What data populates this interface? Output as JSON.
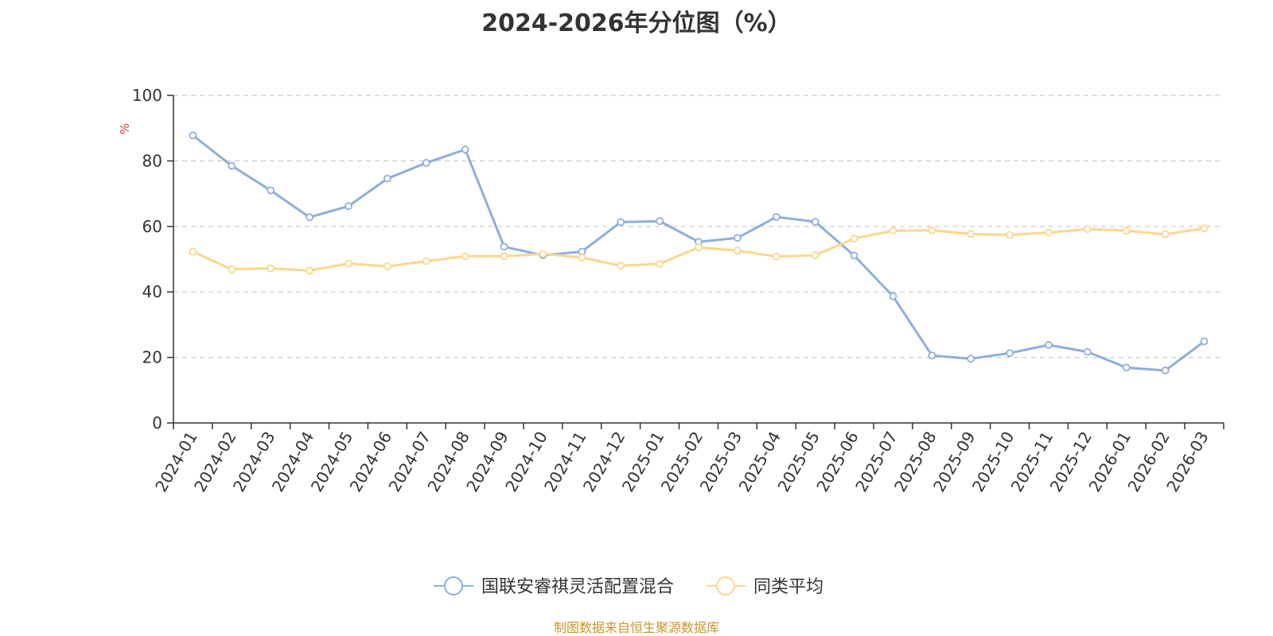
{
  "chart_data": {
    "type": "line",
    "title": "2024-2026年分位图（%）",
    "ylabel": "%",
    "ylim": [
      0,
      100
    ],
    "yticks": [
      0,
      20,
      40,
      60,
      80,
      100
    ],
    "grid": true,
    "legend_position": "bottom",
    "categories": [
      "2024-01",
      "2024-02",
      "2024-03",
      "2024-04",
      "2024-05",
      "2024-06",
      "2024-07",
      "2024-08",
      "2024-09",
      "2024-10",
      "2024-11",
      "2024-12",
      "2025-01",
      "2025-02",
      "2025-03",
      "2025-04",
      "2025-05",
      "2025-06",
      "2025-07",
      "2025-08",
      "2025-09",
      "2025-10",
      "2025-11",
      "2025-12",
      "2026-01",
      "2026-02",
      "2026-03"
    ],
    "series": [
      {
        "name": "国联安睿祺灵活配置混合",
        "color": "#8eaedb",
        "values": [
          87.8,
          78.5,
          71.0,
          62.8,
          66.2,
          74.6,
          79.4,
          83.5,
          53.8,
          51.2,
          52.3,
          61.3,
          61.6,
          55.3,
          56.5,
          62.9,
          61.4,
          51.1,
          38.7,
          20.6,
          19.6,
          21.3,
          23.8,
          21.7,
          16.9,
          16.0,
          24.9
        ]
      },
      {
        "name": "同类平均",
        "color": "#fcd68d",
        "values": [
          52.3,
          46.9,
          47.2,
          46.5,
          48.7,
          47.8,
          49.4,
          50.9,
          50.9,
          51.6,
          50.5,
          48.0,
          48.6,
          53.6,
          52.6,
          50.8,
          51.2,
          56.3,
          58.7,
          58.8,
          57.7,
          57.4,
          58.1,
          59.2,
          58.7,
          57.6,
          59.4
        ]
      }
    ],
    "source": "制图数据来自恒生聚源数据库"
  }
}
